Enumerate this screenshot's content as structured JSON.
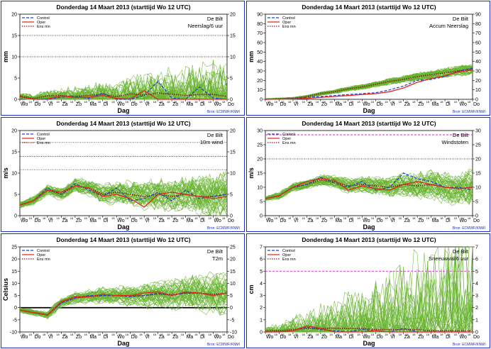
{
  "colors": {
    "ens": "#66b32e",
    "control": "#1f3fd6",
    "oper": "#e0281e",
    "ensmean": "#8b1a1a",
    "border": "#1a2fd1",
    "threshold": "#dd22dd"
  },
  "x_tick_labels": [
    "Wo",
    "Do",
    "Vr",
    "Za",
    "Zo",
    "Ma",
    "Di",
    "Wo",
    "Do",
    "Vr",
    "Za",
    "Zo",
    "Ma",
    "Di",
    "Wo",
    "Do"
  ],
  "x_minor_labels": [
    "06",
    "18",
    "06",
    "18",
    "06",
    "18",
    "06",
    "18",
    "06",
    "18",
    "06",
    "18",
    "06",
    "18",
    "06",
    "18",
    "06",
    "18",
    "06",
    "18",
    "06",
    "18",
    "06",
    "18",
    "06",
    "18",
    "06",
    "18",
    "06",
    "18"
  ],
  "chart_data": [
    {
      "id": "neerslag",
      "type": "line",
      "title": "Donderdag 14 Maart   2013  (starttijd  Wo 12 UTC)",
      "station": "De Bilt",
      "variable": "Neerslag/6 uur",
      "ylabel": "mm",
      "xlabel": "Dag",
      "ylim": [
        0,
        20
      ],
      "yticks": [
        0,
        5,
        10,
        15,
        20
      ],
      "dotted_lines": [
        10,
        15
      ],
      "magenta_lines": [],
      "source": "Bron: ECMWF/KNMI",
      "legend": [
        "Control",
        "Oper",
        "Ens mn"
      ],
      "legend_styles": [
        "dashed",
        "solid",
        "dotted"
      ],
      "ens_spread": [
        0.4,
        2.2
      ],
      "x": [
        0,
        1,
        2,
        3,
        4,
        5,
        6,
        7,
        8,
        9,
        10,
        11,
        12,
        13,
        14,
        15
      ],
      "series": [
        {
          "values": [
            0.8,
            0.2,
            0.8,
            0.9,
            0.7,
            0.9,
            1.2,
            0.6,
            1.3,
            1.0,
            1.5,
            1.2,
            0.9,
            1.1,
            1.2,
            0.6
          ],
          "style": "ensmean"
        },
        {
          "values": [
            0.7,
            0.0,
            0.0,
            0.5,
            0.7,
            0.2,
            1.4,
            0.0,
            0.0,
            0.9,
            4.2,
            0.3,
            0.0,
            2.9,
            0.3,
            0.0
          ],
          "style": "control"
        },
        {
          "values": [
            0.6,
            0.0,
            0.1,
            0.8,
            0.4,
            0.5,
            0.9,
            0.2,
            0.1,
            2.0,
            0.0,
            0.0,
            0.0,
            0.0,
            0.0,
            0.0
          ],
          "style": "oper"
        }
      ]
    },
    {
      "id": "accum",
      "type": "line",
      "title": "Donderdag 14 Maart   2013  (starttijd  Wo 12 UTC)",
      "station": "De Bilt",
      "variable": "Accum Neerslag",
      "ylabel": "mm",
      "xlabel": "Dag",
      "ylim": [
        0,
        90
      ],
      "yticks": [
        0,
        10,
        20,
        30,
        40,
        50,
        60,
        70,
        80,
        90
      ],
      "dotted_lines": [],
      "magenta_lines": [],
      "source": "Bron: ECMWF/KNMI",
      "legend": [
        "Control",
        "Oper",
        "Ens mn"
      ],
      "legend_styles": [
        "dashed",
        "solid",
        "dotted"
      ],
      "ens_spread": [
        0.5,
        1.6
      ],
      "x": [
        0,
        1,
        2,
        3,
        4,
        5,
        6,
        7,
        8,
        9,
        10,
        11,
        12,
        13,
        14,
        15
      ],
      "series": [
        {
          "values": [
            0,
            0.5,
            1,
            3,
            6,
            8,
            11,
            13,
            16,
            19,
            21,
            24,
            26,
            28,
            30,
            32
          ],
          "style": "ensmean"
        },
        {
          "values": [
            0,
            0.3,
            1,
            2,
            3,
            4,
            5,
            6,
            7,
            10,
            14,
            20,
            21,
            24,
            30,
            33
          ],
          "style": "control"
        },
        {
          "values": [
            0,
            0.2,
            0.5,
            1,
            2,
            3,
            4,
            5,
            6,
            8,
            12,
            18,
            22,
            25,
            29,
            31
          ],
          "style": "oper"
        }
      ]
    },
    {
      "id": "wind",
      "type": "line",
      "title": "Donderdag 14 Maart   2013  (starttijd  Wo 12 UTC)",
      "station": "De Bilt",
      "variable": "10m wind",
      "ylabel": "m/s",
      "xlabel": "Dag",
      "ylim": [
        0,
        20
      ],
      "yticks": [
        0,
        5,
        10,
        15,
        20
      ],
      "dotted_lines": [
        10.8,
        13.9,
        17.2
      ],
      "magenta_lines": [],
      "source": "Bron: ECMWF/KNMI",
      "legend": [
        "Control",
        "Oper",
        "Ens mn"
      ],
      "legend_styles": [
        "dashed",
        "solid",
        "dotted"
      ],
      "ens_spread": [
        0.5,
        1.5
      ],
      "x": [
        0,
        1,
        2,
        3,
        4,
        5,
        6,
        7,
        8,
        9,
        10,
        11,
        12,
        13,
        14,
        15
      ],
      "series": [
        {
          "values": [
            2.5,
            3.5,
            6,
            5,
            7,
            6.5,
            5,
            5.5,
            5,
            4.5,
            5,
            4.5,
            5,
            4.5,
            4.5,
            5
          ],
          "style": "ensmean"
        },
        {
          "values": [
            2.5,
            3.5,
            6.5,
            5,
            7.5,
            6,
            4.5,
            6.5,
            3.5,
            4,
            5.5,
            3.5,
            6,
            4,
            4.5,
            5
          ],
          "style": "control"
        },
        {
          "values": [
            2.5,
            3.5,
            6,
            5.5,
            7,
            6.5,
            4.5,
            5,
            4,
            2,
            5,
            5.5,
            5,
            4.5,
            4,
            4.5
          ],
          "style": "oper"
        }
      ]
    },
    {
      "id": "windstoten",
      "type": "line",
      "title": "Donderdag 14 Maart   2013  (starttijd  Wo 12 UTC)",
      "station": "De Bilt",
      "variable": "Windstoten",
      "ylabel": "m/s",
      "xlabel": "Dag",
      "ylim": [
        0,
        30
      ],
      "yticks": [
        0,
        5,
        10,
        15,
        20,
        25,
        30
      ],
      "dotted_lines": [
        20
      ],
      "magenta_lines": [
        28.5
      ],
      "source": "Bron: ECMWF/KNMI",
      "legend": [
        "Control",
        "Oper",
        "Ens mn"
      ],
      "legend_styles": [
        "dashed",
        "solid",
        "dotted"
      ],
      "ens_spread": [
        0.6,
        1.6
      ],
      "x": [
        0,
        1,
        2,
        3,
        4,
        5,
        6,
        7,
        8,
        9,
        10,
        11,
        12,
        13,
        14,
        15
      ],
      "series": [
        {
          "values": [
            6,
            7,
            10,
            11,
            12.5,
            12,
            10.5,
            11,
            10.5,
            10,
            11,
            10.5,
            11,
            10,
            9.5,
            10
          ],
          "style": "ensmean"
        },
        {
          "values": [
            6,
            7,
            10,
            11,
            13.5,
            11.5,
            10,
            12,
            9,
            10,
            15,
            13,
            12,
            10,
            10,
            9
          ],
          "style": "control"
        },
        {
          "values": [
            6,
            7,
            10,
            12,
            13,
            12.5,
            9,
            10.5,
            9.5,
            9,
            11,
            12,
            11,
            10,
            9.5,
            10
          ],
          "style": "oper"
        }
      ]
    },
    {
      "id": "t2m",
      "type": "line",
      "title": "Donderdag 14 Maart   2013  (starttijd  Wo 12 UTC)",
      "station": "De Bilt",
      "variable": "T2m",
      "ylabel": "Celsius",
      "xlabel": "Dag",
      "ylim": [
        -10,
        25
      ],
      "yticks": [
        -10,
        -5,
        0,
        5,
        10,
        15,
        20,
        25
      ],
      "dotted_lines": [],
      "magenta_lines": [],
      "zero_line": true,
      "source": "Bron: ECMWF/KNMI",
      "legend": [
        "Control",
        "Oper",
        "Ens mn"
      ],
      "legend_styles": [
        "dashed",
        "solid",
        "dotted"
      ],
      "ens_spread": [
        0.6,
        2.4
      ],
      "x": [
        0,
        1,
        2,
        3,
        4,
        5,
        6,
        7,
        8,
        9,
        10,
        11,
        12,
        13,
        14,
        15
      ],
      "series": [
        {
          "values": [
            -1,
            -2,
            -3,
            2,
            4,
            4.5,
            5,
            5,
            5,
            5,
            5.5,
            5.5,
            6,
            6,
            5.5,
            6
          ],
          "style": "ensmean"
        },
        {
          "values": [
            -1,
            -2,
            -3,
            2,
            4,
            5,
            5,
            5,
            4.5,
            5,
            6,
            5,
            6,
            6,
            5,
            6
          ],
          "style": "control"
        },
        {
          "values": [
            -1,
            -2,
            -3,
            2.5,
            4.5,
            4.5,
            5.5,
            5,
            5,
            6,
            6.5,
            5,
            6.5,
            6,
            5,
            6
          ],
          "style": "oper"
        }
      ]
    },
    {
      "id": "sneeuw",
      "type": "line",
      "title": "Donderdag 14 Maart   2013  (starttijd  Wo 12 UTC)",
      "station": "De Bilt",
      "variable": "Sneeuwval/6 uur",
      "ylabel": "cm",
      "xlabel": "Dag",
      "ylim": [
        0,
        7
      ],
      "yticks": [
        0,
        1,
        2,
        3,
        4,
        5,
        6,
        7
      ],
      "dotted_lines": [],
      "magenta_lines": [
        5
      ],
      "source": "Bron: ECMWF/KNMI",
      "legend": [
        "Control",
        "Oper",
        "Ens mn"
      ],
      "legend_styles": [
        "dashed",
        "solid",
        "dotted"
      ],
      "ens_spread": [
        0.2,
        2.5
      ],
      "x": [
        0,
        1,
        2,
        3,
        4,
        5,
        6,
        7,
        8,
        9,
        10,
        11,
        12,
        13,
        14,
        15
      ],
      "series": [
        {
          "values": [
            0.1,
            0.1,
            0.2,
            0.3,
            0.3,
            0.3,
            0.3,
            0.3,
            0.2,
            0.2,
            0.2,
            0.2,
            0.1,
            0.1,
            0.1,
            0.1
          ],
          "style": "ensmean"
        },
        {
          "values": [
            0,
            0,
            0.1,
            0.4,
            0.2,
            0.1,
            0,
            0.2,
            0.1,
            0,
            0.3,
            0,
            0,
            0,
            0,
            0
          ],
          "style": "control"
        },
        {
          "values": [
            0,
            0,
            0.1,
            0.5,
            0.3,
            0,
            0,
            0,
            0.1,
            0,
            0,
            0,
            0,
            0,
            0,
            0
          ],
          "style": "oper"
        }
      ]
    }
  ]
}
